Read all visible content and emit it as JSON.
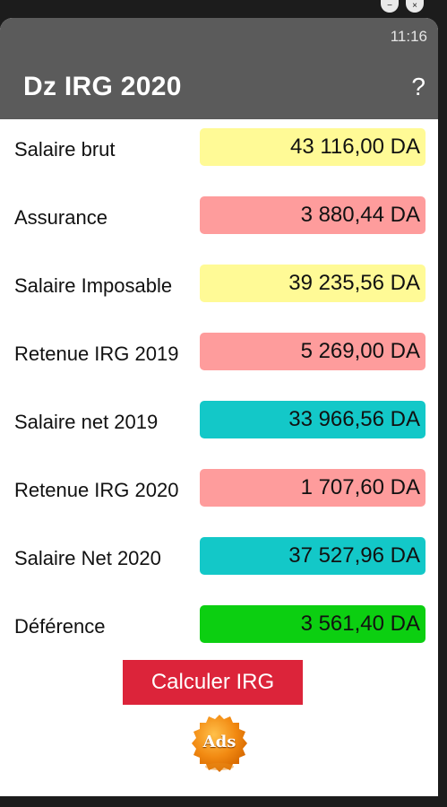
{
  "window": {
    "minimize_glyph": "−",
    "close_glyph": "×"
  },
  "status_bar": {
    "time": "11:16"
  },
  "app_bar": {
    "title": "Dz IRG 2020",
    "help": "?"
  },
  "rows": [
    {
      "label": "Salaire brut",
      "value": "43 116,00 DA",
      "color": "#fffa96"
    },
    {
      "label": "Assurance",
      "value": "3 880,44 DA",
      "color": "#fe9c9c"
    },
    {
      "label": "Salaire Imposable",
      "value": "39 235,56 DA",
      "color": "#fffa96"
    },
    {
      "label": "Retenue IRG 2019",
      "value": "5 269,00 DA",
      "color": "#fe9c9c"
    },
    {
      "label": "Salaire net 2019",
      "value": "33 966,56 DA",
      "color": "#13c8c8"
    },
    {
      "label": "Retenue IRG 2020",
      "value": "1 707,60 DA",
      "color": "#fe9c9c"
    },
    {
      "label": "Salaire Net 2020",
      "value": "37 527,96 DA",
      "color": "#13c8c8"
    },
    {
      "label": "Déférence",
      "value": "3 561,40 DA",
      "color": "#0ccf11"
    }
  ],
  "calculate_button": {
    "label": "Calculer IRG",
    "color": "#dc243a"
  },
  "ads_badge": {
    "label": "Ads",
    "color": "#f28a12"
  }
}
